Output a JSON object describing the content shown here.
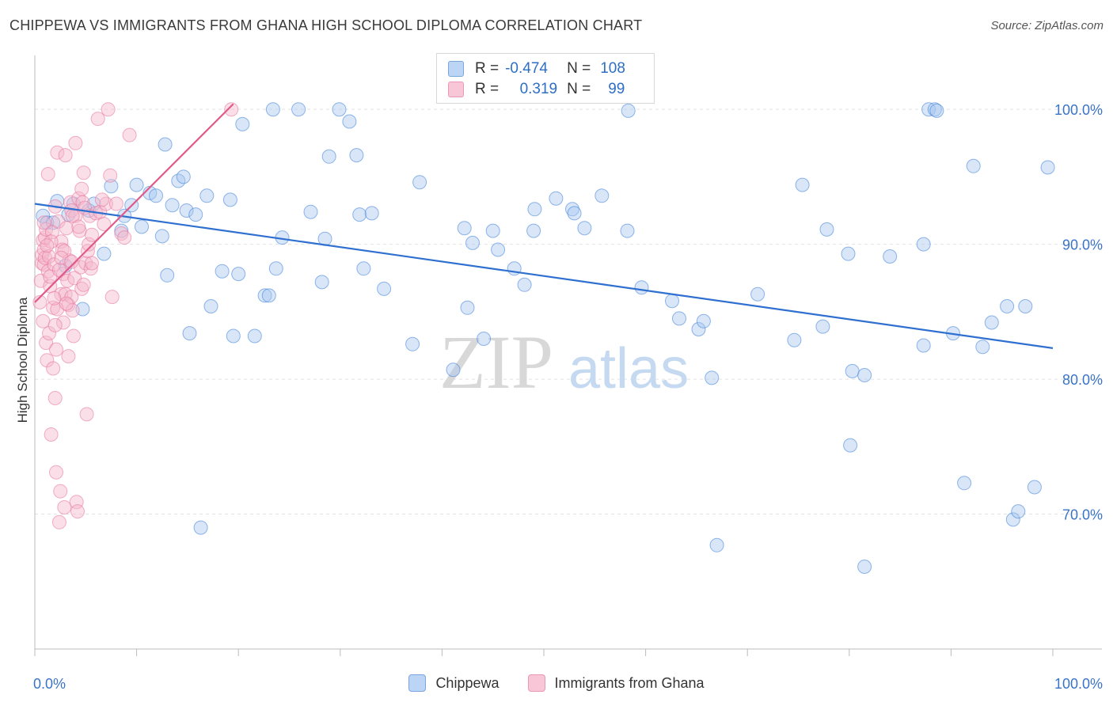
{
  "header": {
    "title": "CHIPPEWA VS IMMIGRANTS FROM GHANA HIGH SCHOOL DIPLOMA CORRELATION CHART",
    "source": "Source: ZipAtlas.com"
  },
  "watermark": {
    "zip": "ZIP",
    "atlas": "atlas"
  },
  "legend": {
    "rows": [
      {
        "r_label": "R =",
        "r_value": "-0.474",
        "n_label": "N =",
        "n_value": "108",
        "color": "#a9c8f0"
      },
      {
        "r_label": "R =",
        "r_value": "0.319",
        "n_label": "N =",
        "n_value": "99",
        "color": "#f5b8cb"
      }
    ]
  },
  "bottom_legend": [
    {
      "label": "Chippewa",
      "color": "#bcd5f5"
    },
    {
      "label": "Immigrants from Ghana",
      "color": "#f8c6d6"
    }
  ],
  "chart_data": {
    "type": "scatter",
    "ylabel": "High School Diploma",
    "xlim": [
      0,
      100
    ],
    "ylim": [
      60,
      104
    ],
    "x_tick_labels": [
      {
        "x": 0,
        "label": "0.0%"
      },
      {
        "x": 100,
        "label": "100.0%"
      }
    ],
    "y_tick_labels": [
      {
        "y": 70,
        "label": "70.0%"
      },
      {
        "y": 80,
        "label": "80.0%"
      },
      {
        "y": 90,
        "label": "90.0%"
      },
      {
        "y": 100,
        "label": "100.0%"
      }
    ],
    "gridlines_y": [
      70,
      80,
      90,
      100
    ],
    "series": [
      {
        "name": "Chippewa",
        "color": "#3b7dd8",
        "fill": "#a9c8f0",
        "trend": {
          "x1": 0,
          "y1": 93.0,
          "x2": 100,
          "y2": 82.3,
          "color": "#2e6fd0"
        },
        "points": [
          [
            0.8,
            92.1
          ],
          [
            1.2,
            91.6
          ],
          [
            1.8,
            91.6
          ],
          [
            2.2,
            93.2
          ],
          [
            3.0,
            88.4
          ],
          [
            3.3,
            92.2
          ],
          [
            3.8,
            93.0
          ],
          [
            4.7,
            85.2
          ],
          [
            5.3,
            92.5
          ],
          [
            5.8,
            93.0
          ],
          [
            6.8,
            89.3
          ],
          [
            7.5,
            94.3
          ],
          [
            8.5,
            91.0
          ],
          [
            8.8,
            92.1
          ],
          [
            9.5,
            92.9
          ],
          [
            10.0,
            94.4
          ],
          [
            10.5,
            91.3
          ],
          [
            11.3,
            93.8
          ],
          [
            11.9,
            93.6
          ],
          [
            12.5,
            90.6
          ],
          [
            12.8,
            97.4
          ],
          [
            13.0,
            87.7
          ],
          [
            13.5,
            92.9
          ],
          [
            14.1,
            94.7
          ],
          [
            14.6,
            95.0
          ],
          [
            14.9,
            92.5
          ],
          [
            15.2,
            83.4
          ],
          [
            15.8,
            92.2
          ],
          [
            16.3,
            69.0
          ],
          [
            16.9,
            93.6
          ],
          [
            17.3,
            85.4
          ],
          [
            18.4,
            88.0
          ],
          [
            19.2,
            93.3
          ],
          [
            19.5,
            83.2
          ],
          [
            20.0,
            87.8
          ],
          [
            20.4,
            98.9
          ],
          [
            21.6,
            83.2
          ],
          [
            22.6,
            86.2
          ],
          [
            23.0,
            86.2
          ],
          [
            23.7,
            88.2
          ],
          [
            23.4,
            100.0
          ],
          [
            24.3,
            90.5
          ],
          [
            25.9,
            100.0
          ],
          [
            27.1,
            92.4
          ],
          [
            28.2,
            87.2
          ],
          [
            28.5,
            90.4
          ],
          [
            28.9,
            96.5
          ],
          [
            29.9,
            100.0
          ],
          [
            30.9,
            99.1
          ],
          [
            31.6,
            96.6
          ],
          [
            31.9,
            92.2
          ],
          [
            32.3,
            88.2
          ],
          [
            33.1,
            92.3
          ],
          [
            34.3,
            86.7
          ],
          [
            37.1,
            82.6
          ],
          [
            37.8,
            94.6
          ],
          [
            41.1,
            80.7
          ],
          [
            42.2,
            91.2
          ],
          [
            42.5,
            85.3
          ],
          [
            43.0,
            90.1
          ],
          [
            44.1,
            83.0
          ],
          [
            45.0,
            91.0
          ],
          [
            45.5,
            89.6
          ],
          [
            47.1,
            88.2
          ],
          [
            48.1,
            87.0
          ],
          [
            49.0,
            91.0
          ],
          [
            49.1,
            92.6
          ],
          [
            51.2,
            93.4
          ],
          [
            52.8,
            92.6
          ],
          [
            53.0,
            92.3
          ],
          [
            54.0,
            91.2
          ],
          [
            55.7,
            93.6
          ],
          [
            58.2,
            91.0
          ],
          [
            59.6,
            86.8
          ],
          [
            62.6,
            85.8
          ],
          [
            63.3,
            84.5
          ],
          [
            65.2,
            83.7
          ],
          [
            65.7,
            84.3
          ],
          [
            66.5,
            80.1
          ],
          [
            71.0,
            86.3
          ],
          [
            74.6,
            82.9
          ],
          [
            75.4,
            94.4
          ],
          [
            77.4,
            83.9
          ],
          [
            77.8,
            91.1
          ],
          [
            79.9,
            89.3
          ],
          [
            80.1,
            75.1
          ],
          [
            80.3,
            80.6
          ],
          [
            81.5,
            80.3
          ],
          [
            81.5,
            66.1
          ],
          [
            84.0,
            89.1
          ],
          [
            87.3,
            90.0
          ],
          [
            87.3,
            82.5
          ],
          [
            87.8,
            100.0
          ],
          [
            88.4,
            100.0
          ],
          [
            90.2,
            83.4
          ],
          [
            91.3,
            72.3
          ],
          [
            92.2,
            95.8
          ],
          [
            93.1,
            82.4
          ],
          [
            94.0,
            84.2
          ],
          [
            95.5,
            85.4
          ],
          [
            96.1,
            69.6
          ],
          [
            96.6,
            70.2
          ],
          [
            97.3,
            85.4
          ],
          [
            98.2,
            72.0
          ],
          [
            99.5,
            95.7
          ],
          [
            67.0,
            67.7
          ],
          [
            58.3,
            99.9
          ],
          [
            88.6,
            99.9
          ]
        ]
      },
      {
        "name": "Immigrants from Ghana",
        "color": "#e8719a",
        "fill": "#f5b8cb",
        "trend": {
          "x1": 0,
          "y1": 85.7,
          "x2": 19.5,
          "y2": 100.4,
          "color": "#e05a8a"
        },
        "points": [
          [
            0.5,
            85.7
          ],
          [
            0.6,
            87.3
          ],
          [
            0.7,
            88.6
          ],
          [
            0.7,
            89.2
          ],
          [
            0.8,
            90.3
          ],
          [
            0.8,
            84.3
          ],
          [
            0.9,
            89.6
          ],
          [
            0.9,
            88.5
          ],
          [
            1.0,
            90.5
          ],
          [
            1.0,
            89.0
          ],
          [
            1.1,
            91.1
          ],
          [
            1.1,
            82.7
          ],
          [
            1.2,
            81.4
          ],
          [
            1.3,
            95.2
          ],
          [
            1.3,
            88.0
          ],
          [
            1.4,
            89.1
          ],
          [
            1.4,
            83.4
          ],
          [
            1.5,
            86.9
          ],
          [
            1.6,
            75.9
          ],
          [
            1.7,
            90.9
          ],
          [
            1.8,
            85.3
          ],
          [
            1.8,
            80.8
          ],
          [
            1.9,
            88.5
          ],
          [
            2.0,
            92.8
          ],
          [
            2.0,
            78.6
          ],
          [
            2.1,
            73.1
          ],
          [
            2.2,
            96.8
          ],
          [
            2.2,
            85.2
          ],
          [
            2.3,
            91.7
          ],
          [
            2.4,
            69.4
          ],
          [
            2.5,
            71.7
          ],
          [
            2.6,
            90.2
          ],
          [
            2.6,
            86.3
          ],
          [
            2.7,
            89.6
          ],
          [
            2.8,
            87.8
          ],
          [
            2.8,
            84.2
          ],
          [
            2.9,
            70.5
          ],
          [
            3.0,
            96.6
          ],
          [
            3.0,
            86.3
          ],
          [
            3.1,
            91.2
          ],
          [
            3.2,
            87.3
          ],
          [
            3.3,
            81.7
          ],
          [
            3.3,
            85.5
          ],
          [
            3.4,
            88.8
          ],
          [
            3.5,
            93.1
          ],
          [
            3.6,
            86.1
          ],
          [
            3.6,
            92.5
          ],
          [
            3.7,
            85.1
          ],
          [
            3.8,
            83.2
          ],
          [
            3.9,
            87.5
          ],
          [
            4.0,
            97.5
          ],
          [
            4.0,
            92.1
          ],
          [
            4.1,
            70.9
          ],
          [
            4.2,
            70.2
          ],
          [
            4.3,
            93.4
          ],
          [
            4.4,
            91.0
          ],
          [
            4.5,
            88.3
          ],
          [
            4.6,
            94.1
          ],
          [
            4.6,
            86.7
          ],
          [
            4.7,
            93.1
          ],
          [
            4.8,
            95.3
          ],
          [
            4.9,
            92.7
          ],
          [
            5.0,
            88.6
          ],
          [
            5.1,
            77.4
          ],
          [
            5.2,
            89.5
          ],
          [
            5.3,
            90.0
          ],
          [
            5.4,
            92.1
          ],
          [
            5.5,
            88.2
          ],
          [
            5.6,
            88.6
          ],
          [
            6.0,
            92.3
          ],
          [
            6.2,
            99.3
          ],
          [
            6.4,
            92.4
          ],
          [
            6.8,
            91.5
          ],
          [
            7.0,
            93.0
          ],
          [
            7.2,
            100.0
          ],
          [
            7.4,
            95.1
          ],
          [
            7.6,
            86.1
          ],
          [
            8.0,
            93.0
          ],
          [
            8.5,
            90.8
          ],
          [
            8.8,
            90.5
          ],
          [
            9.3,
            98.1
          ],
          [
            2.0,
            84.0
          ],
          [
            1.5,
            87.6
          ],
          [
            2.4,
            88.1
          ],
          [
            3.7,
            92.1
          ],
          [
            2.9,
            89.5
          ],
          [
            1.9,
            86.0
          ],
          [
            4.3,
            91.3
          ],
          [
            3.1,
            85.6
          ],
          [
            2.1,
            82.2
          ],
          [
            1.6,
            90.2
          ],
          [
            1.2,
            89.9
          ],
          [
            0.9,
            91.6
          ],
          [
            2.6,
            89.0
          ],
          [
            3.6,
            88.7
          ],
          [
            4.8,
            87.0
          ],
          [
            5.6,
            90.7
          ],
          [
            6.6,
            93.3
          ],
          [
            19.3,
            100.0
          ]
        ]
      }
    ]
  }
}
